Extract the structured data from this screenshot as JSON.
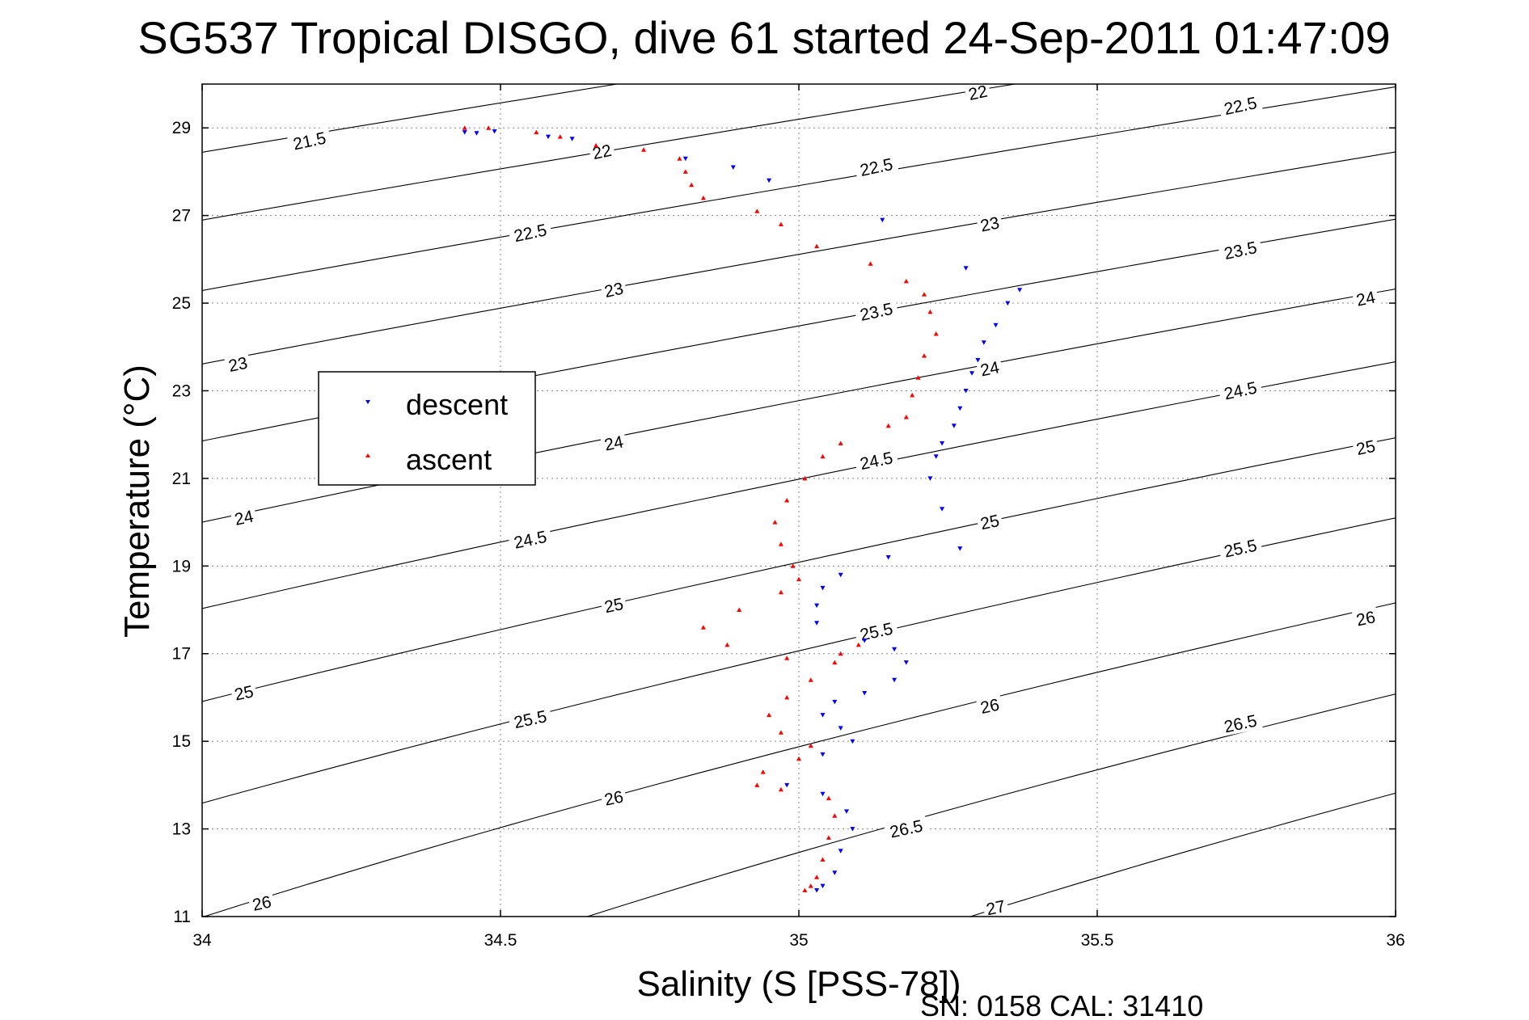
{
  "title": "SG537 Tropical DISGO, dive 61 started 24-Sep-2011 01:47:09",
  "footer": "SN: 0158  CAL: 31410",
  "colors": {
    "descent": "#0000ff",
    "ascent": "#ff0000",
    "axes": "#000000",
    "grid": "#888888"
  },
  "chart_data": {
    "type": "scatter",
    "title": "SG537 Tropical DISGO, dive 61 started 24-Sep-2011 01:47:09",
    "xlabel": "Salinity (S [PSS-78])",
    "ylabel": "Temperature (°C)",
    "xlim": [
      34,
      36
    ],
    "ylim": [
      11,
      30
    ],
    "xticks": [
      34,
      34.5,
      35,
      35.5,
      36
    ],
    "xtick_labels": [
      "34",
      "34.5",
      "35",
      "35.5",
      "36"
    ],
    "yticks": [
      11,
      13,
      15,
      17,
      19,
      21,
      23,
      25,
      27,
      29
    ],
    "ytick_labels": [
      "11",
      "13",
      "15",
      "17",
      "19",
      "21",
      "23",
      "25",
      "27",
      "29"
    ],
    "grid": true,
    "legend_position": "upper-left",
    "series": [
      {
        "name": "descent",
        "marker": "triangle-down",
        "color": "#0000ff",
        "points": [
          [
            34.44,
            28.9
          ],
          [
            34.46,
            28.88
          ],
          [
            34.49,
            28.92
          ],
          [
            34.58,
            28.8
          ],
          [
            34.62,
            28.75
          ],
          [
            34.81,
            28.3
          ],
          [
            34.89,
            28.1
          ],
          [
            34.95,
            27.8
          ],
          [
            35.14,
            26.9
          ],
          [
            35.28,
            25.8
          ],
          [
            35.37,
            25.3
          ],
          [
            35.35,
            25.0
          ],
          [
            35.33,
            24.5
          ],
          [
            35.31,
            24.1
          ],
          [
            35.3,
            23.7
          ],
          [
            35.29,
            23.4
          ],
          [
            35.28,
            23.0
          ],
          [
            35.27,
            22.6
          ],
          [
            35.26,
            22.2
          ],
          [
            35.24,
            21.8
          ],
          [
            35.23,
            21.5
          ],
          [
            35.22,
            21.0
          ],
          [
            35.24,
            20.3
          ],
          [
            35.27,
            19.4
          ],
          [
            35.15,
            19.2
          ],
          [
            35.07,
            18.8
          ],
          [
            35.04,
            18.5
          ],
          [
            35.03,
            18.1
          ],
          [
            35.03,
            17.7
          ],
          [
            35.11,
            17.3
          ],
          [
            35.16,
            17.1
          ],
          [
            35.18,
            16.8
          ],
          [
            35.16,
            16.4
          ],
          [
            35.11,
            16.1
          ],
          [
            35.06,
            15.9
          ],
          [
            35.04,
            15.6
          ],
          [
            35.07,
            15.3
          ],
          [
            35.09,
            15.0
          ],
          [
            35.04,
            14.7
          ],
          [
            34.98,
            14.0
          ],
          [
            35.04,
            13.8
          ],
          [
            35.08,
            13.4
          ],
          [
            35.09,
            13.0
          ],
          [
            35.07,
            12.5
          ],
          [
            35.06,
            12.0
          ],
          [
            35.04,
            11.7
          ],
          [
            35.03,
            11.6
          ]
        ]
      },
      {
        "name": "ascent",
        "marker": "triangle-up",
        "color": "#ff0000",
        "points": [
          [
            34.44,
            29.0
          ],
          [
            34.48,
            29.0
          ],
          [
            34.56,
            28.9
          ],
          [
            34.6,
            28.8
          ],
          [
            34.66,
            28.6
          ],
          [
            34.74,
            28.5
          ],
          [
            34.8,
            28.3
          ],
          [
            34.81,
            28.0
          ],
          [
            34.82,
            27.7
          ],
          [
            34.84,
            27.4
          ],
          [
            34.93,
            27.1
          ],
          [
            34.97,
            26.8
          ],
          [
            35.03,
            26.3
          ],
          [
            35.12,
            25.9
          ],
          [
            35.18,
            25.5
          ],
          [
            35.21,
            25.2
          ],
          [
            35.22,
            24.8
          ],
          [
            35.23,
            24.3
          ],
          [
            35.21,
            23.8
          ],
          [
            35.2,
            23.3
          ],
          [
            35.19,
            22.9
          ],
          [
            35.18,
            22.4
          ],
          [
            35.15,
            22.2
          ],
          [
            35.07,
            21.8
          ],
          [
            35.04,
            21.5
          ],
          [
            35.01,
            21.0
          ],
          [
            34.98,
            20.5
          ],
          [
            34.96,
            20.0
          ],
          [
            34.97,
            19.5
          ],
          [
            34.99,
            19.0
          ],
          [
            35.0,
            18.7
          ],
          [
            34.97,
            18.4
          ],
          [
            34.9,
            18.0
          ],
          [
            34.84,
            17.6
          ],
          [
            34.88,
            17.2
          ],
          [
            34.98,
            16.9
          ],
          [
            35.07,
            17.0
          ],
          [
            35.1,
            17.2
          ],
          [
            35.06,
            16.8
          ],
          [
            35.02,
            16.4
          ],
          [
            34.98,
            16.0
          ],
          [
            34.95,
            15.6
          ],
          [
            34.97,
            15.2
          ],
          [
            35.02,
            14.9
          ],
          [
            35.0,
            14.6
          ],
          [
            34.94,
            14.3
          ],
          [
            34.93,
            14.0
          ],
          [
            34.97,
            13.9
          ],
          [
            35.05,
            13.7
          ],
          [
            35.06,
            13.3
          ],
          [
            35.05,
            12.8
          ],
          [
            35.04,
            12.3
          ],
          [
            35.03,
            11.9
          ],
          [
            35.02,
            11.7
          ],
          [
            35.01,
            11.6
          ]
        ]
      }
    ],
    "density_contours": {
      "label_format": "sigma-t",
      "levels": [
        21.5,
        22,
        22.5,
        23,
        23.5,
        24,
        24.5,
        25,
        25.5,
        26,
        26.5,
        27
      ],
      "labels": [
        {
          "text": "21.5",
          "s": 34.18,
          "t": 28.7
        },
        {
          "text": "22",
          "s": 34.67,
          "t": 28.45
        },
        {
          "text": "22",
          "s": 35.3,
          "t": 29.8
        },
        {
          "text": "22.5",
          "s": 34.55,
          "t": 26.6
        },
        {
          "text": "22.5",
          "s": 35.13,
          "t": 28.1
        },
        {
          "text": "22.5",
          "s": 35.74,
          "t": 29.5
        },
        {
          "text": "23",
          "s": 34.06,
          "t": 23.6
        },
        {
          "text": "23",
          "s": 34.69,
          "t": 25.3
        },
        {
          "text": "23",
          "s": 35.32,
          "t": 26.8
        },
        {
          "text": "23.5",
          "s": 35.13,
          "t": 24.8
        },
        {
          "text": "23.5",
          "s": 35.74,
          "t": 26.2
        },
        {
          "text": "24",
          "s": 34.07,
          "t": 20.1
        },
        {
          "text": "24",
          "s": 34.69,
          "t": 21.8
        },
        {
          "text": "24",
          "s": 35.32,
          "t": 23.5
        },
        {
          "text": "24",
          "s": 35.95,
          "t": 25.1
        },
        {
          "text": "24.5",
          "s": 34.55,
          "t": 19.6
        },
        {
          "text": "24.5",
          "s": 35.13,
          "t": 21.4
        },
        {
          "text": "24.5",
          "s": 35.74,
          "t": 23.0
        },
        {
          "text": "25",
          "s": 34.07,
          "t": 16.1
        },
        {
          "text": "25",
          "s": 34.69,
          "t": 18.1
        },
        {
          "text": "25",
          "s": 35.32,
          "t": 20.0
        },
        {
          "text": "25",
          "s": 35.95,
          "t": 21.7
        },
        {
          "text": "25.5",
          "s": 34.55,
          "t": 15.5
        },
        {
          "text": "25.5",
          "s": 35.13,
          "t": 17.5
        },
        {
          "text": "25.5",
          "s": 35.74,
          "t": 19.4
        },
        {
          "text": "26",
          "s": 34.1,
          "t": 11.3
        },
        {
          "text": "26",
          "s": 34.69,
          "t": 13.7
        },
        {
          "text": "26",
          "s": 35.32,
          "t": 15.8
        },
        {
          "text": "26",
          "s": 35.95,
          "t": 17.8
        },
        {
          "text": "26.5",
          "s": 35.18,
          "t": 13.0
        },
        {
          "text": "26.5",
          "s": 35.74,
          "t": 15.4
        },
        {
          "text": "27",
          "s": 35.33,
          "t": 11.2
        }
      ]
    }
  }
}
